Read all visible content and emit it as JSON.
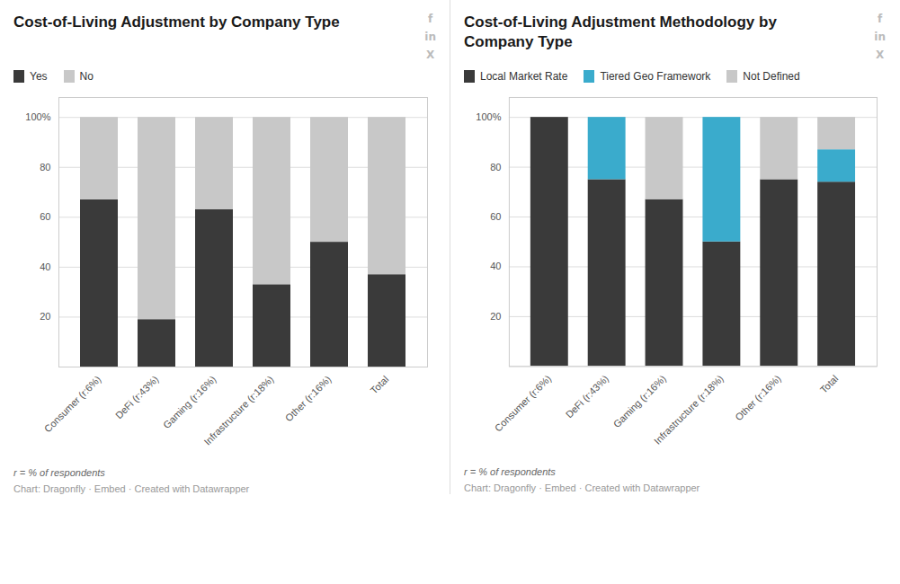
{
  "chart_data": [
    {
      "type": "bar",
      "title": "Cost-of-Living Adjustment by Company Type",
      "categories": [
        "Consumer (r:6%)",
        "DeFi (r:43%)",
        "Gaming (r:16%)",
        "Infrastructure (r:18%)",
        "Other (r:16%)",
        "Total"
      ],
      "series": [
        {
          "name": "Yes",
          "color": "#3a3a3a",
          "values": [
            67,
            19,
            63,
            33,
            50,
            37
          ]
        },
        {
          "name": "No",
          "color": "#c8c8c8",
          "values": [
            33,
            81,
            37,
            67,
            50,
            63
          ]
        }
      ],
      "stacked": true,
      "ylim": [
        0,
        108
      ],
      "yticks": [
        {
          "value": 0,
          "label": null
        },
        20,
        40,
        60,
        80,
        {
          "value": 100,
          "label": "100%"
        }
      ],
      "grid": true,
      "legend": "top",
      "annotations": [
        "f",
        "in",
        "X",
        "r = % of respondents",
        "Chart: Dragonfly · Embed · Created with Datawrapper"
      ]
    },
    {
      "type": "bar",
      "title": "Cost-of-Living Adjustment Methodology by Company Type",
      "categories": [
        "Consumer (r:6%)",
        "DeFi (r:43%)",
        "Gaming (r:16%)",
        "Infrastructure (r:18%)",
        "Other (r:16%)",
        "Total"
      ],
      "series": [
        {
          "name": "Local Market Rate",
          "color": "#3a3a3a",
          "values": [
            100,
            75,
            67,
            50,
            75,
            74
          ]
        },
        {
          "name": "Tiered Geo Framework",
          "color": "#3aabcc",
          "values": [
            0,
            25,
            0,
            50,
            0,
            13
          ]
        },
        {
          "name": "Not Defined",
          "color": "#c8c8c8",
          "values": [
            0,
            0,
            33,
            0,
            25,
            13
          ]
        }
      ],
      "stacked": true,
      "ylim": [
        0,
        108
      ],
      "yticks": [
        {
          "value": 0,
          "label": null
        },
        20,
        40,
        60,
        80,
        {
          "value": 100,
          "label": "100%"
        }
      ],
      "grid": true,
      "legend": "top",
      "annotations": [
        "f",
        "in",
        "X",
        "r = % of respondents",
        "Chart: Dragonfly · Embed · Created with Datawrapper"
      ]
    }
  ]
}
